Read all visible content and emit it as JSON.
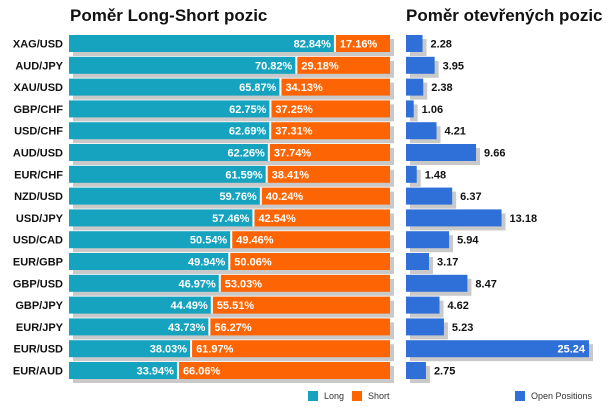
{
  "titles": {
    "long_short": "Poměr Long-Short pozic",
    "open_positions": "Poměr otevřených pozic"
  },
  "legend": {
    "long": "Long",
    "short": "Short",
    "open": "Open Positions"
  },
  "colors": {
    "long": "#16a3bf",
    "short": "#fd6504",
    "open": "#2f6fd8",
    "shadow": "#c9c9c9"
  },
  "chart_data": [
    {
      "type": "bar",
      "title": "Poměr Long-Short pozic",
      "stacked": true,
      "orientation": "horizontal",
      "categories": [
        "XAG/USD",
        "AUD/JPY",
        "XAU/USD",
        "GBP/CHF",
        "USD/CHF",
        "AUD/USD",
        "EUR/CHF",
        "NZD/USD",
        "USD/JPY",
        "USD/CAD",
        "EUR/GBP",
        "GBP/USD",
        "GBP/JPY",
        "EUR/JPY",
        "EUR/USD",
        "EUR/AUD"
      ],
      "series": [
        {
          "name": "Long",
          "values": [
            82.84,
            70.82,
            65.87,
            62.75,
            62.69,
            62.26,
            61.59,
            59.76,
            57.46,
            50.54,
            49.94,
            46.97,
            44.49,
            43.73,
            38.03,
            33.94
          ]
        },
        {
          "name": "Short",
          "values": [
            17.16,
            29.18,
            34.13,
            37.25,
            37.31,
            37.74,
            38.41,
            40.24,
            42.54,
            49.46,
            50.06,
            53.03,
            55.51,
            56.27,
            61.97,
            66.06
          ]
        }
      ],
      "legend": "bottom-right"
    },
    {
      "type": "bar",
      "title": "Poměr otevřených pozic",
      "orientation": "horizontal",
      "categories": [
        "XAG/USD",
        "AUD/JPY",
        "XAU/USD",
        "GBP/CHF",
        "USD/CHF",
        "AUD/USD",
        "EUR/CHF",
        "NZD/USD",
        "USD/JPY",
        "USD/CAD",
        "EUR/GBP",
        "GBP/USD",
        "GBP/JPY",
        "EUR/JPY",
        "EUR/USD",
        "EUR/AUD"
      ],
      "series": [
        {
          "name": "Open Positions",
          "values": [
            2.28,
            3.95,
            2.38,
            1.06,
            4.21,
            9.66,
            1.48,
            6.37,
            13.18,
            5.94,
            3.17,
            8.47,
            4.62,
            5.23,
            25.24,
            2.75
          ]
        }
      ],
      "xlim": [
        0,
        25.24
      ],
      "legend": "bottom-right"
    }
  ]
}
